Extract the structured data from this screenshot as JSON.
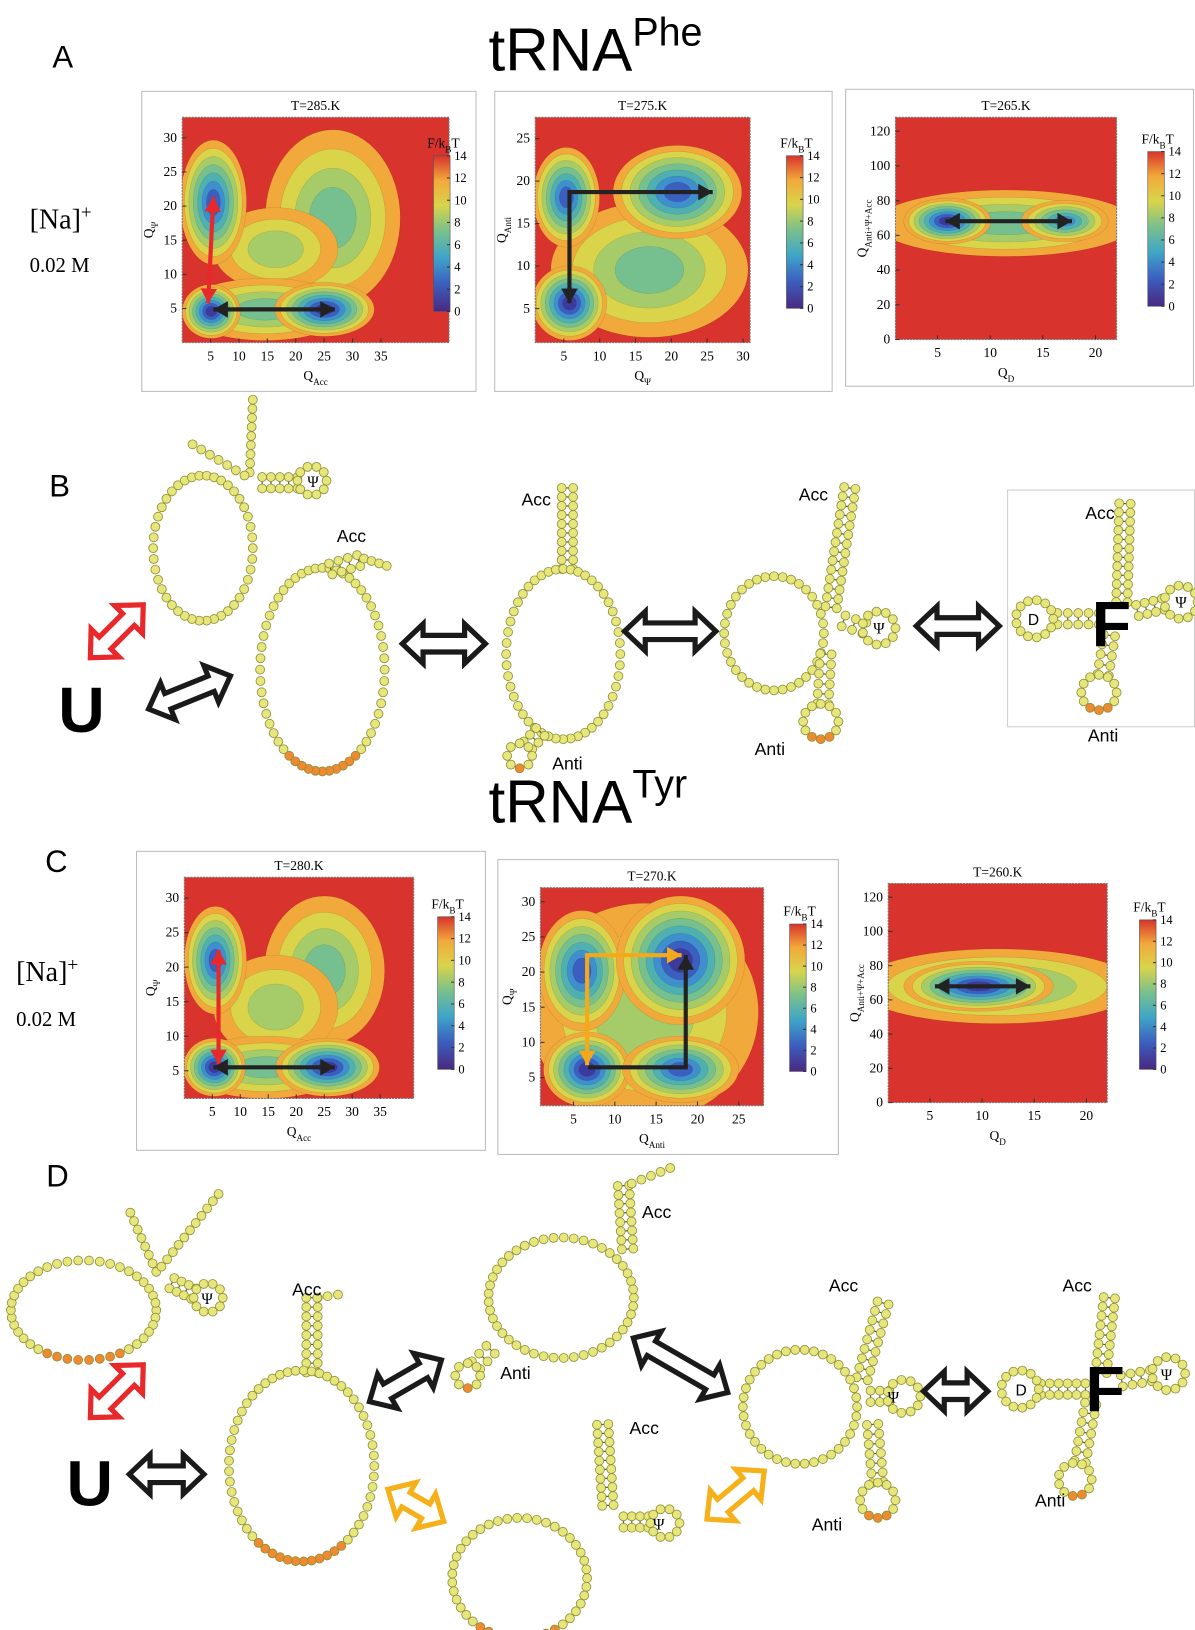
{
  "panel_labels": [
    "A",
    "B",
    "C",
    "D"
  ],
  "headings": [
    {
      "text": "tRNA",
      "sup": "Phe"
    },
    {
      "text": "tRNA",
      "sup": "Tyr"
    }
  ],
  "conditions": [
    {
      "ion": "[Na]",
      "charge": "+",
      "concentration": "0.02 M"
    },
    {
      "ion": "[Na]",
      "charge": "+",
      "concentration": "0.02 M"
    }
  ],
  "chart_data": [
    {
      "type": "contour",
      "title": "T=285.K",
      "x_label": {
        "text": "Q",
        "sub": "Acc"
      },
      "y_label": {
        "text": "Q",
        "sub": "Ψ"
      },
      "xlim": [
        0,
        47
      ],
      "ylim": [
        0,
        33
      ],
      "xticks": [
        5,
        10,
        15,
        20,
        25,
        30,
        35
      ],
      "yticks": [
        5,
        10,
        15,
        20,
        25,
        30
      ],
      "colorbar": {
        "label": {
          "text": "F/k",
          "sub": "B",
          "tail": "T"
        },
        "lim": [
          0,
          14
        ],
        "ticks": [
          0,
          2,
          4,
          6,
          8,
          10,
          12,
          14
        ]
      }
    },
    {
      "type": "contour",
      "title": "T=275.K",
      "x_label": {
        "text": "Q",
        "sub": "Ψ"
      },
      "y_label": {
        "text": "Q",
        "sub": "Anti"
      },
      "xlim": [
        1,
        31
      ],
      "ylim": [
        1,
        27.5
      ],
      "xticks": [
        5,
        10,
        15,
        20,
        25,
        30
      ],
      "yticks": [
        5,
        10,
        15,
        20,
        25
      ],
      "colorbar": {
        "label": {
          "text": "F/k",
          "sub": "B",
          "tail": "T"
        },
        "lim": [
          0,
          14
        ],
        "ticks": [
          0,
          2,
          4,
          6,
          8,
          10,
          12,
          14
        ]
      }
    },
    {
      "type": "contour",
      "title": "T=265.K",
      "x_label": {
        "text": "Q",
        "sub": "D"
      },
      "y_label": {
        "text": "Q",
        "sub": "Anti+Ψ+Acc"
      },
      "xlim": [
        1,
        22
      ],
      "ylim": [
        0,
        128
      ],
      "xticks": [
        5,
        10,
        15,
        20
      ],
      "yticks": [
        0,
        20,
        40,
        60,
        80,
        100,
        120
      ],
      "colorbar": {
        "label": {
          "text": "F/k",
          "sub": "B",
          "tail": "T"
        },
        "lim": [
          0,
          14
        ],
        "ticks": [
          0,
          2,
          4,
          6,
          8,
          10,
          12,
          14
        ]
      }
    },
    {
      "type": "contour",
      "title": "T=280.K",
      "x_label": {
        "text": "Q",
        "sub": "Acc"
      },
      "y_label": {
        "text": "Q",
        "sub": "Ψ"
      },
      "xlim": [
        0,
        41
      ],
      "ylim": [
        1,
        33
      ],
      "xticks": [
        5,
        10,
        15,
        20,
        25,
        30,
        35
      ],
      "yticks": [
        5,
        10,
        15,
        20,
        25,
        30
      ],
      "colorbar": {
        "label": {
          "text": "F/k",
          "sub": "B",
          "tail": "T"
        },
        "lim": [
          0,
          14
        ],
        "ticks": [
          0,
          2,
          4,
          6,
          8,
          10,
          12,
          14
        ]
      }
    },
    {
      "type": "contour",
      "title": "T=270.K",
      "x_label": {
        "text": "Q",
        "sub": "Anti"
      },
      "y_label": {
        "text": "Q",
        "sub": "Ψ"
      },
      "xlim": [
        1,
        28
      ],
      "ylim": [
        1,
        32
      ],
      "xticks": [
        5,
        10,
        15,
        20,
        25
      ],
      "yticks": [
        5,
        10,
        15,
        20,
        25,
        30
      ],
      "colorbar": {
        "label": {
          "text": "F/k",
          "sub": "B",
          "tail": "T"
        },
        "lim": [
          0,
          14
        ],
        "ticks": [
          0,
          2,
          4,
          6,
          8,
          10,
          12,
          14
        ]
      }
    },
    {
      "type": "contour",
      "title": "T=260.K",
      "x_label": {
        "text": "Q",
        "sub": "D"
      },
      "y_label": {
        "text": "Q",
        "sub": "Anti+Ψ+Acc"
      },
      "xlim": [
        1,
        22
      ],
      "ylim": [
        0,
        128
      ],
      "xticks": [
        5,
        10,
        15,
        20
      ],
      "yticks": [
        0,
        20,
        40,
        60,
        80,
        100,
        120
      ],
      "colorbar": {
        "label": {
          "text": "F/k",
          "sub": "B",
          "tail": "T"
        },
        "lim": [
          0,
          14
        ],
        "ticks": [
          0,
          2,
          4,
          6,
          8,
          10,
          12,
          14
        ]
      }
    }
  ],
  "panel_b_labels": [
    "Ψ",
    "Acc",
    "U",
    "Acc",
    "Anti",
    "Acc",
    "Ψ",
    "Anti",
    "Acc",
    "D",
    "F",
    "Ψ",
    "Anti"
  ],
  "panel_d_labels": [
    "Ψ",
    "Acc",
    "U",
    "Acc",
    "Anti",
    "Acc",
    "Ψ",
    "Acc",
    "Ψ",
    "Anti",
    "Acc",
    "D",
    "F",
    "Ψ",
    "Anti"
  ]
}
